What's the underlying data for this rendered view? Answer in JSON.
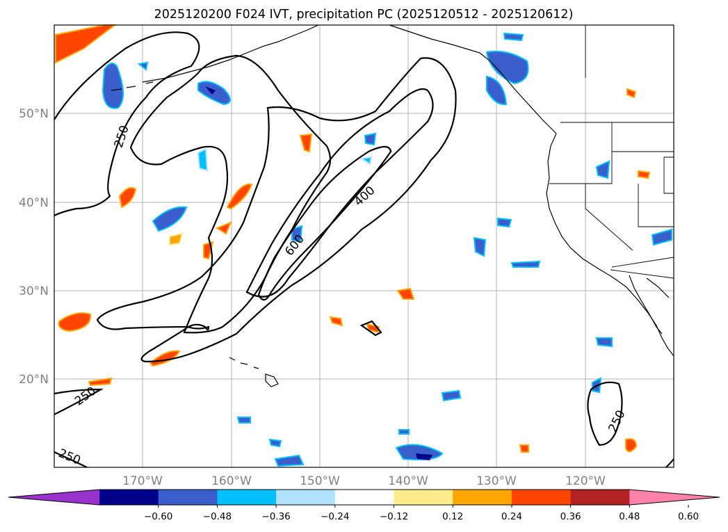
{
  "figure": {
    "title": "2025120200 F024 IVT, precipitation PC (2025120512 - 2025120612)"
  },
  "map": {
    "lat_labels": [
      "50°N",
      "40°N",
      "30°N",
      "20°N"
    ],
    "lon_labels": [
      "170°W",
      "160°W",
      "150°W",
      "140°W",
      "130°W",
      "120°W"
    ],
    "ivt_contour_labels": [
      "250",
      "400",
      "600",
      "250",
      "250",
      "250"
    ]
  },
  "colorbar": {
    "tick_labels": [
      "−0.60",
      "−0.48",
      "−0.36",
      "−0.24",
      "−0.12",
      "0.12",
      "0.24",
      "0.36",
      "0.48",
      "0.60"
    ],
    "colors": [
      "#9932cc",
      "#00008b",
      "#3a5fcd",
      "#00bfff",
      "#b0e2ff",
      "#ffffff",
      "#ffec8b",
      "#ffa500",
      "#ff4500",
      "#b22222",
      "#ff82ab"
    ]
  },
  "colors": {
    "positive_strong": "#ff4500",
    "positive_mid": "#ffa500",
    "positive_weak": "#ffec8b",
    "negative_strong": "#00008b",
    "negative_mid": "#3a5fcd",
    "negative_light": "#00bfff"
  }
}
